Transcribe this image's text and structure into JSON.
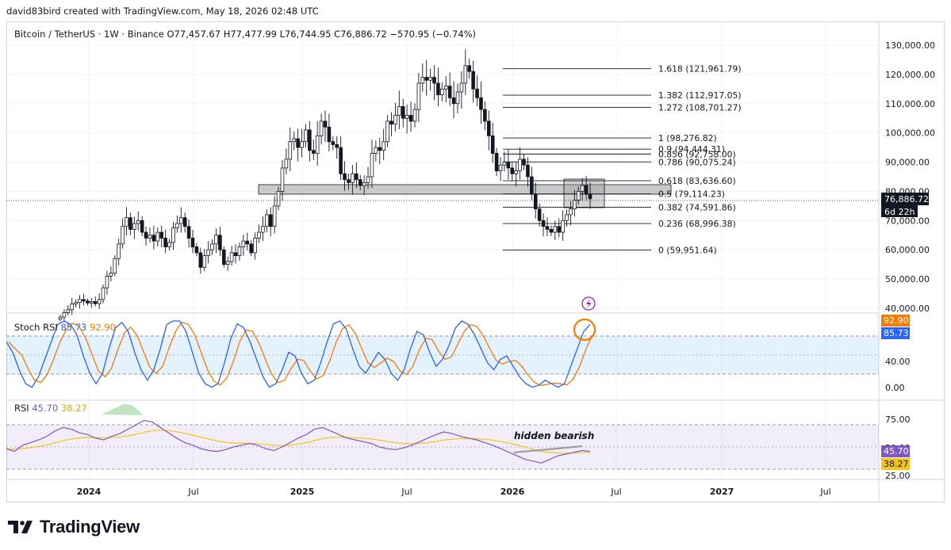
{
  "caption": "david83bird created with TradingView.com, May 18, 2026 02:48 UTC",
  "header": {
    "symbol": "Bitcoin / TetherUS · 1W · Binance",
    "open": "O77,457.67",
    "high": "H77,477.99",
    "low": "L76,744.95",
    "close": "C76,886.72",
    "change": "−570.95 (−0.74%)"
  },
  "price_axis": {
    "ticks": [
      "130,000.00",
      "120,000.00",
      "110,000.00",
      "100,000.00",
      "90,000.00",
      "80,000.00",
      "70,000.00",
      "60,000.00",
      "50,000.00",
      "40,000.00"
    ],
    "current_price": "76,886.72",
    "countdown": "6d 22h"
  },
  "fib_levels": [
    {
      "label": "1.618 (121,961.79)",
      "value": 121961.79
    },
    {
      "label": "1.382 (112,917.05)",
      "value": 112917.05
    },
    {
      "label": "1.272 (108,701.27)",
      "value": 108701.27
    },
    {
      "label": "1 (98,276.82)",
      "value": 98276.82
    },
    {
      "label": "0.9 (94,444.31)",
      "value": 94444.31
    },
    {
      "label": "0.856 (92,758.00)",
      "value": 92758.0
    },
    {
      "label": "0.786 (90,075.24)",
      "value": 90075.24
    },
    {
      "label": "0.618 (83,636.60)",
      "value": 83636.6
    },
    {
      "label": "0.5 (79,114.23)",
      "value": 79114.23
    },
    {
      "label": "0.382 (74,591.86)",
      "value": 74591.86
    },
    {
      "label": "0.236 (68,996.38)",
      "value": 68996.38
    },
    {
      "label": "0 (59,951.64)",
      "value": 59951.64
    }
  ],
  "stoch_rsi": {
    "label": "Stoch RSI",
    "k": "85.73",
    "d": "92.90",
    "ticks": [
      "40.00",
      "0.00"
    ],
    "k_color": "#2962ff",
    "d_color": "#f57c00"
  },
  "rsi": {
    "label": "RSI",
    "value": "45.70",
    "ma": "38.27",
    "ticks": [
      "75.00",
      "50.00",
      "25.00"
    ],
    "annotation": "hidden bearish",
    "rsi_color": "#7e57c2",
    "ma_color": "#f5c518"
  },
  "time_axis": [
    "2024",
    "Jul",
    "2025",
    "Jul",
    "2026",
    "Jul",
    "2027",
    "Jul"
  ],
  "brand": "TradingView",
  "colors": {
    "up": "#ffffff",
    "down": "#131722",
    "grid": "#f0f3fa"
  }
}
